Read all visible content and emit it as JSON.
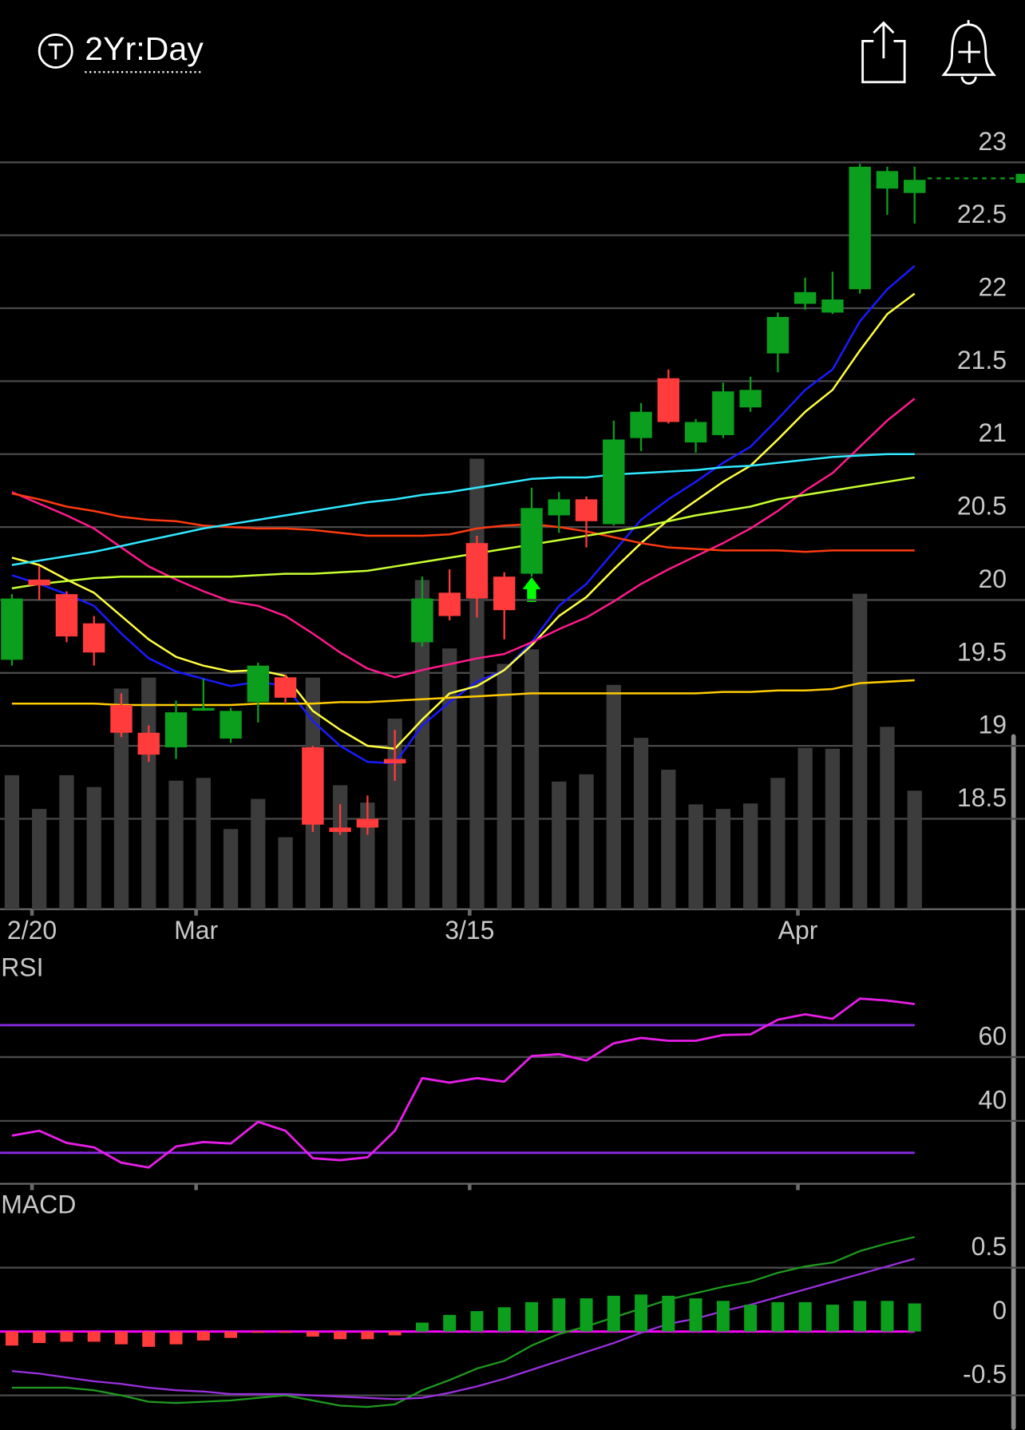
{
  "header": {
    "timeframe": "2Yr:Day"
  },
  "chart_data": [
    {
      "type": "candlestick",
      "categories": [
        null,
        "2/20",
        null,
        null,
        null,
        null,
        null,
        "Mar",
        null,
        null,
        null,
        null,
        null,
        null,
        null,
        null,
        null,
        "3/15",
        null,
        null,
        null,
        null,
        null,
        null,
        null,
        null,
        null,
        null,
        null,
        "Apr",
        null,
        null,
        null,
        null
      ],
      "open": [
        19.59,
        20.14,
        20.04,
        19.84,
        19.28,
        19.09,
        18.99,
        19.25,
        19.05,
        19.3,
        19.47,
        18.99,
        18.44,
        18.5,
        18.91,
        19.71,
        20.05,
        20.39,
        20.16,
        20.18,
        20.58,
        20.69,
        20.52,
        21.11,
        21.52,
        21.08,
        21.13,
        21.32,
        21.69,
        22.03,
        21.97,
        22.13,
        22.82,
        22.79
      ],
      "high": [
        20.04,
        20.23,
        20.06,
        19.89,
        19.36,
        19.14,
        19.31,
        19.46,
        19.26,
        19.57,
        19.49,
        19.0,
        18.6,
        18.66,
        19.11,
        20.16,
        20.21,
        20.44,
        20.19,
        20.77,
        20.74,
        20.71,
        21.23,
        21.35,
        21.58,
        21.24,
        21.49,
        21.53,
        21.97,
        22.21,
        22.25,
        22.99,
        22.97,
        22.97
      ],
      "low": [
        19.55,
        20.0,
        19.71,
        19.55,
        19.06,
        18.89,
        18.91,
        19.24,
        19.02,
        19.16,
        19.29,
        18.41,
        18.39,
        18.39,
        18.76,
        19.68,
        19.86,
        19.88,
        19.73,
        20.16,
        20.46,
        20.36,
        20.51,
        21.02,
        21.21,
        21.01,
        21.11,
        21.29,
        21.56,
        21.99,
        21.96,
        22.1,
        22.64,
        22.58
      ],
      "close": [
        20.01,
        20.1,
        19.75,
        19.64,
        19.09,
        18.94,
        19.23,
        19.26,
        19.24,
        19.55,
        19.33,
        18.46,
        18.41,
        18.44,
        18.88,
        20.01,
        19.89,
        20.01,
        19.93,
        20.63,
        20.69,
        20.54,
        21.1,
        21.29,
        21.22,
        21.22,
        21.43,
        21.44,
        21.94,
        22.11,
        22.06,
        22.97,
        22.94,
        22.88
      ],
      "up_color": "#0b9f1d",
      "down_color": "#ff3b3b",
      "ylim": [
        17.88,
        23.3
      ],
      "yticks": [
        18.5,
        19,
        19.5,
        20,
        20.5,
        21,
        21.5,
        22,
        22.5,
        23
      ],
      "grid": true,
      "last_price": 22.89,
      "overlays": [
        {
          "color": "#1a1aff",
          "values": [
            20.17,
            20.11,
            20.04,
            19.96,
            19.77,
            19.6,
            19.51,
            19.46,
            19.41,
            19.44,
            19.41,
            19.17,
            19.0,
            18.89,
            18.88,
            19.14,
            19.3,
            19.44,
            19.52,
            19.71,
            19.96,
            20.11,
            20.33,
            20.55,
            20.69,
            20.81,
            20.94,
            21.05,
            21.24,
            21.44,
            21.58,
            21.91,
            22.13,
            22.29
          ]
        },
        {
          "color": "#ffff40",
          "values": [
            20.29,
            20.24,
            20.14,
            20.05,
            19.89,
            19.73,
            19.61,
            19.55,
            19.51,
            19.52,
            19.48,
            19.24,
            19.11,
            19.0,
            18.98,
            19.18,
            19.36,
            19.41,
            19.52,
            19.69,
            19.89,
            20.02,
            20.21,
            20.39,
            20.55,
            20.68,
            20.81,
            20.92,
            21.1,
            21.29,
            21.44,
            21.71,
            21.96,
            22.1
          ]
        },
        {
          "color": "#ff1a8c",
          "values": [
            20.74,
            20.66,
            20.58,
            20.49,
            20.36,
            20.23,
            20.14,
            20.06,
            19.99,
            19.96,
            19.89,
            19.77,
            19.64,
            19.53,
            19.47,
            19.52,
            19.56,
            19.6,
            19.63,
            19.71,
            19.8,
            19.88,
            19.99,
            20.11,
            20.21,
            20.3,
            20.39,
            20.49,
            20.61,
            20.75,
            20.87,
            21.05,
            21.23,
            21.38
          ]
        },
        {
          "color": "#ff3a10",
          "values": [
            20.73,
            20.69,
            20.64,
            20.61,
            20.57,
            20.55,
            20.54,
            20.51,
            20.5,
            20.49,
            20.49,
            20.48,
            20.46,
            20.44,
            20.44,
            20.44,
            20.45,
            20.49,
            20.51,
            20.52,
            20.5,
            20.47,
            20.43,
            20.39,
            20.36,
            20.35,
            20.34,
            20.34,
            20.34,
            20.33,
            20.34,
            20.34,
            20.34,
            20.34
          ]
        },
        {
          "color": "#30e8ff",
          "values": [
            20.24,
            20.27,
            20.3,
            20.33,
            20.37,
            20.41,
            20.45,
            20.49,
            20.52,
            20.55,
            20.58,
            20.61,
            20.64,
            20.67,
            20.69,
            20.72,
            20.74,
            20.77,
            20.8,
            20.83,
            20.84,
            20.84,
            20.86,
            20.87,
            20.88,
            20.89,
            20.91,
            20.92,
            20.94,
            20.96,
            20.98,
            20.99,
            21.0,
            21.0
          ]
        },
        {
          "color": "#c8ff30",
          "values": [
            20.08,
            20.11,
            20.13,
            20.15,
            20.16,
            20.16,
            20.16,
            20.16,
            20.16,
            20.17,
            20.18,
            20.18,
            20.19,
            20.2,
            20.23,
            20.26,
            20.29,
            20.32,
            20.35,
            20.38,
            20.41,
            20.44,
            20.47,
            20.5,
            20.54,
            20.58,
            20.61,
            20.64,
            20.69,
            20.72,
            20.75,
            20.78,
            20.81,
            20.84
          ]
        },
        {
          "color": "#ffcc00",
          "values": [
            19.29,
            19.29,
            19.29,
            19.29,
            19.28,
            19.28,
            19.28,
            19.28,
            19.28,
            19.29,
            19.29,
            19.29,
            19.3,
            19.3,
            19.31,
            19.32,
            19.33,
            19.34,
            19.35,
            19.36,
            19.36,
            19.36,
            19.36,
            19.36,
            19.36,
            19.36,
            19.37,
            19.37,
            19.38,
            19.38,
            19.39,
            19.43,
            19.44,
            19.45
          ]
        }
      ],
      "volume": {
        "color": "#3c3c3c",
        "values": [
          147,
          110,
          147,
          134,
          242,
          254,
          141,
          144,
          88,
          121,
          79,
          254,
          136,
          117,
          209,
          361,
          286,
          494,
          269,
          285,
          140,
          148,
          246,
          188,
          153,
          115,
          110,
          116,
          144,
          177,
          176,
          346,
          200,
          130
        ]
      }
    },
    {
      "type": "line",
      "title": "RSI",
      "series": [
        {
          "color": "#e61ee6",
          "values": [
            35.4,
            36.9,
            33.1,
            31.7,
            26.9,
            25.4,
            32.0,
            33.4,
            32.9,
            39.7,
            36.9,
            28.3,
            27.7,
            28.6,
            36.9,
            53.4,
            52.0,
            53.4,
            52.3,
            60.3,
            60.9,
            58.9,
            64.3,
            66.0,
            65.1,
            65.1,
            66.9,
            67.1,
            71.7,
            73.4,
            72.0,
            78.3,
            77.7,
            76.6
          ]
        }
      ],
      "levels": [
        70,
        30
      ],
      "level_color": "#8a2be2",
      "ylim": [
        20.3,
        82.6
      ],
      "yticks": [
        40,
        60
      ],
      "grid": true
    },
    {
      "type": "macd",
      "title": "MACD",
      "histogram": {
        "values": [
          -0.11,
          -0.09,
          -0.08,
          -0.08,
          -0.1,
          -0.12,
          -0.1,
          -0.07,
          -0.05,
          -0.01,
          -0.01,
          -0.04,
          -0.06,
          -0.06,
          -0.03,
          0.07,
          0.13,
          0.16,
          0.19,
          0.23,
          0.26,
          0.26,
          0.28,
          0.29,
          0.28,
          0.26,
          0.24,
          0.21,
          0.23,
          0.23,
          0.21,
          0.24,
          0.24,
          0.22
        ],
        "positive_color": "#0b9f1d",
        "negative_color": "#ff3b3b"
      },
      "series": [
        {
          "color": "#1f9a1f",
          "values": [
            -0.44,
            -0.44,
            -0.44,
            -0.46,
            -0.5,
            -0.55,
            -0.56,
            -0.55,
            -0.54,
            -0.52,
            -0.5,
            -0.54,
            -0.58,
            -0.59,
            -0.57,
            -0.46,
            -0.38,
            -0.29,
            -0.23,
            -0.11,
            -0.02,
            0.04,
            0.11,
            0.18,
            0.25,
            0.3,
            0.35,
            0.39,
            0.46,
            0.51,
            0.54,
            0.63,
            0.69,
            0.74
          ]
        },
        {
          "color": "#9b30e0",
          "values": [
            -0.31,
            -0.33,
            -0.36,
            -0.39,
            -0.41,
            -0.44,
            -0.46,
            -0.47,
            -0.49,
            -0.49,
            -0.49,
            -0.5,
            -0.51,
            -0.52,
            -0.53,
            -0.52,
            -0.48,
            -0.43,
            -0.37,
            -0.3,
            -0.23,
            -0.16,
            -0.09,
            -0.01,
            0.06,
            0.1,
            0.16,
            0.21,
            0.27,
            0.33,
            0.39,
            0.45,
            0.51,
            0.57
          ]
        }
      ],
      "zero_color": "#ff00ff",
      "ylim": [
        -0.771,
        0.857
      ],
      "yticks": [
        -0.5,
        0,
        0.5
      ],
      "grid": true
    }
  ]
}
